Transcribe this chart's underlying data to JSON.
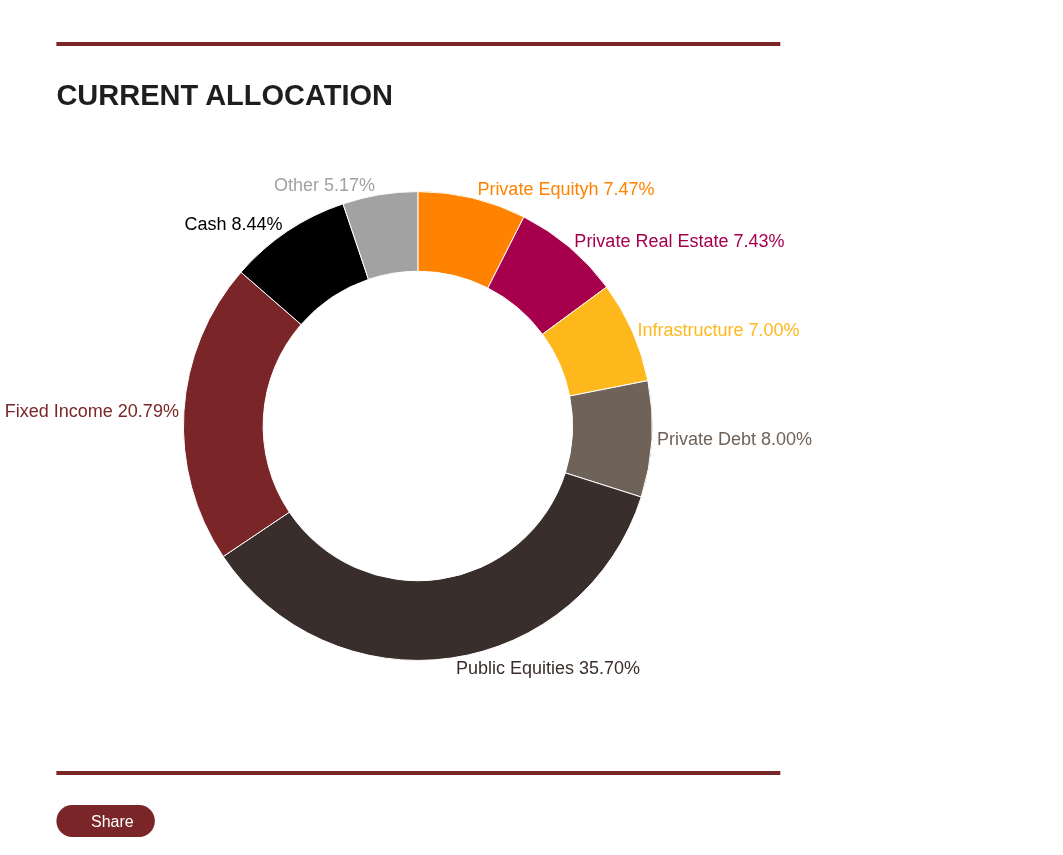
{
  "chart_data": {
    "type": "donut",
    "title": "CURRENT ALLOCATION",
    "categories": [
      "Private Equityh",
      "Private Real Estate",
      "Infrastructure",
      "Private Debt",
      "Public Equities",
      "Fixed Income",
      "Cash",
      "Other"
    ],
    "values": [
      7.47,
      7.43,
      7.0,
      8.0,
      35.7,
      20.79,
      8.44,
      5.17
    ],
    "value_labels": [
      "7.47%",
      "7.43%",
      "7.00%",
      "8.00%",
      "35.70%",
      "20.79%",
      "8.44%",
      "5.17%"
    ],
    "colors": [
      "#ff8200",
      "#a6004d",
      "#ffb81c",
      "#6e6259",
      "#3a2e2c",
      "#7a2528",
      "#000000",
      "#a2a2a2"
    ],
    "annotations": [
      "Share"
    ],
    "legend": false
  }
}
